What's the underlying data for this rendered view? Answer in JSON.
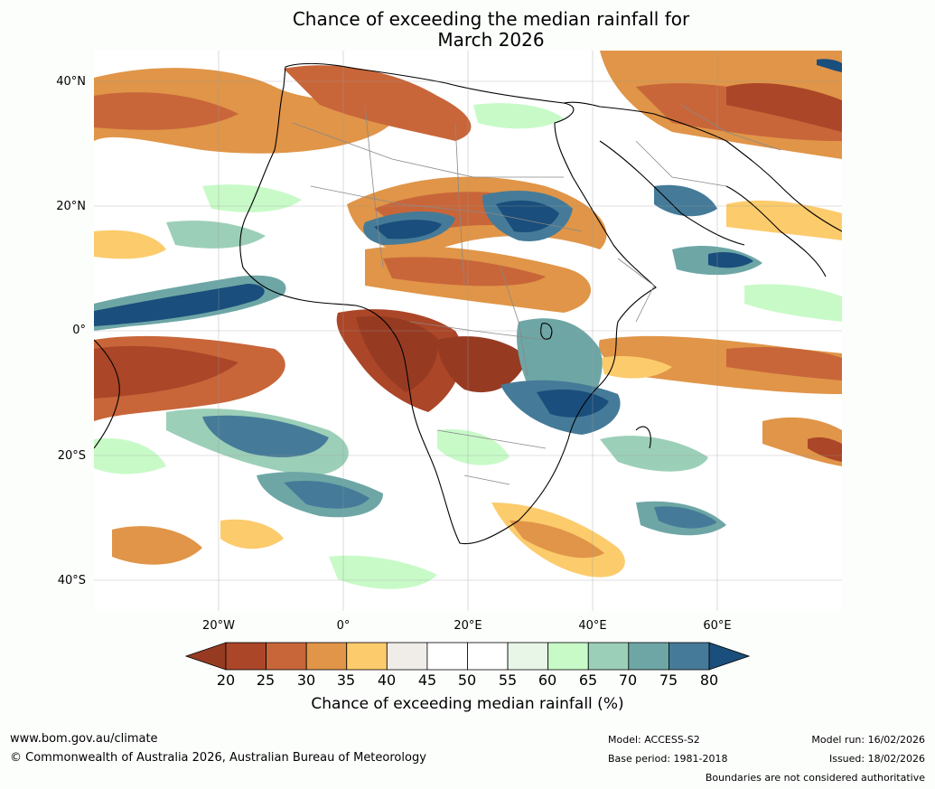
{
  "title_line1": "Chance of exceeding the median rainfall for",
  "title_line2": "March 2026",
  "lat_labels": [
    "40°N",
    "20°N",
    "0°",
    "20°S",
    "40°S"
  ],
  "lon_labels": [
    "20°W",
    "0°",
    "20°E",
    "40°E",
    "60°E"
  ],
  "colorbar": {
    "ticks": [
      "20",
      "25",
      "30",
      "35",
      "40",
      "45",
      "50",
      "55",
      "60",
      "65",
      "70",
      "75",
      "80"
    ],
    "label": "Chance of exceeding median rainfall (%)",
    "under_color": "#963b22",
    "over_color": "#1a4e7c",
    "colors": [
      "#ab4628",
      "#c8663a",
      "#e09548",
      "#fccb6c",
      "#f0ede8",
      "#ffffff",
      "#ffffff",
      "#e8f6e8",
      "#c8fac8",
      "#9ccfb8",
      "#6ea6a6",
      "#457b98"
    ]
  },
  "footer": {
    "website": "www.bom.gov.au/climate",
    "copyright": "© Commonwealth of Australia 2026, Australian Bureau of Meteorology",
    "model": "Model: ACCESS-S2",
    "base_period": "Base period: 1981-2018",
    "model_run": "Model run: 16/02/2026",
    "issued": "Issued: 18/02/2026",
    "disclaimer": "Boundaries are not considered authoritative"
  },
  "map": {
    "lon_range": [
      -40,
      80
    ],
    "lat_range": [
      -45,
      45
    ],
    "grid_lons": [
      -20,
      0,
      20,
      40,
      60
    ],
    "grid_lats": [
      40,
      20,
      0,
      -20,
      -40
    ]
  }
}
